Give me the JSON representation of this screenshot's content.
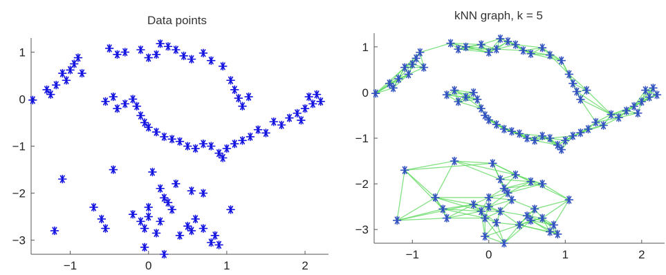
{
  "chart_data": [
    {
      "type": "scatter",
      "title": "Data points",
      "xlabel": "",
      "ylabel": "",
      "xlim": [
        -1.5,
        2.3
      ],
      "ylim": [
        -3.3,
        1.3
      ],
      "xticks": [
        -1,
        0,
        1,
        2
      ],
      "yticks": [
        1,
        0,
        -1,
        -2,
        -3
      ],
      "xtick_labels": [
        "−1",
        "0",
        "1",
        "2"
      ],
      "ytick_labels": [
        "1",
        "0",
        "−1",
        "−2",
        "−3"
      ],
      "grid": false,
      "marker": "asterisk",
      "marker_color": "#1010e0",
      "points": [
        [
          -1.48,
          -0.02
        ],
        [
          -1.3,
          0.2
        ],
        [
          -1.25,
          0.1
        ],
        [
          -1.18,
          0.3
        ],
        [
          -1.1,
          0.55
        ],
        [
          -1.05,
          0.4
        ],
        [
          -1.0,
          0.62
        ],
        [
          -0.95,
          0.75
        ],
        [
          -0.9,
          0.88
        ],
        [
          -0.85,
          0.55
        ],
        [
          -0.5,
          1.08
        ],
        [
          -0.4,
          0.95
        ],
        [
          -0.3,
          1.0
        ],
        [
          -0.1,
          1.05
        ],
        [
          0.0,
          0.88
        ],
        [
          0.1,
          0.95
        ],
        [
          0.15,
          1.18
        ],
        [
          0.25,
          1.12
        ],
        [
          0.35,
          1.05
        ],
        [
          0.45,
          0.92
        ],
        [
          0.55,
          0.85
        ],
        [
          0.7,
          0.98
        ],
        [
          0.8,
          0.82
        ],
        [
          0.95,
          0.7
        ],
        [
          1.05,
          0.4
        ],
        [
          1.1,
          0.2
        ],
        [
          1.15,
          0.02
        ],
        [
          1.2,
          -0.15
        ],
        [
          1.28,
          0.05
        ],
        [
          -0.55,
          -0.05
        ],
        [
          -0.45,
          0.05
        ],
        [
          -0.4,
          -0.2
        ],
        [
          -0.3,
          -0.1
        ],
        [
          -0.2,
          0.0
        ],
        [
          -0.15,
          -0.15
        ],
        [
          -0.1,
          -0.35
        ],
        [
          -0.05,
          -0.5
        ],
        [
          0.0,
          -0.6
        ],
        [
          0.1,
          -0.7
        ],
        [
          0.2,
          -0.8
        ],
        [
          0.3,
          -0.85
        ],
        [
          0.4,
          -0.9
        ],
        [
          0.5,
          -1.0
        ],
        [
          0.6,
          -1.05
        ],
        [
          0.7,
          -0.95
        ],
        [
          0.8,
          -1.0
        ],
        [
          0.9,
          -1.15
        ],
        [
          1.0,
          -1.05
        ],
        [
          1.1,
          -0.95
        ],
        [
          1.2,
          -0.88
        ],
        [
          1.3,
          -0.8
        ],
        [
          1.4,
          -0.65
        ],
        [
          1.5,
          -0.72
        ],
        [
          1.6,
          -0.48
        ],
        [
          1.7,
          -0.55
        ],
        [
          1.8,
          -0.4
        ],
        [
          1.9,
          -0.3
        ],
        [
          2.0,
          -0.2
        ],
        [
          2.05,
          0.05
        ],
        [
          2.1,
          -0.1
        ],
        [
          2.15,
          0.1
        ],
        [
          2.2,
          -0.05
        ],
        [
          1.95,
          -0.45
        ],
        [
          0.95,
          -1.25
        ],
        [
          -1.1,
          -1.7
        ],
        [
          -0.45,
          -1.5
        ],
        [
          -0.7,
          -2.3
        ],
        [
          -0.6,
          -2.55
        ],
        [
          -0.55,
          -2.75
        ],
        [
          -1.2,
          -2.8
        ],
        [
          -0.2,
          -2.45
        ],
        [
          -0.1,
          -2.6
        ],
        [
          -0.05,
          -2.75
        ],
        [
          0.0,
          -2.5
        ],
        [
          0.1,
          -2.85
        ],
        [
          0.15,
          -2.6
        ],
        [
          0.2,
          -2.1
        ],
        [
          0.25,
          -2.2
        ],
        [
          0.3,
          -2.35
        ],
        [
          0.4,
          -2.9
        ],
        [
          0.5,
          -2.7
        ],
        [
          0.55,
          -2.8
        ],
        [
          0.6,
          -2.55
        ],
        [
          0.7,
          -2.75
        ],
        [
          0.8,
          -3.05
        ],
        [
          0.85,
          -2.9
        ],
        [
          0.9,
          -3.1
        ],
        [
          1.05,
          -2.35
        ],
        [
          -0.05,
          -3.15
        ],
        [
          0.2,
          -3.3
        ],
        [
          0.05,
          -1.55
        ],
        [
          0.15,
          -1.9
        ],
        [
          0.35,
          -1.8
        ],
        [
          0.55,
          -1.95
        ],
        [
          0.7,
          -2.0
        ],
        [
          0.0,
          -2.3
        ]
      ]
    },
    {
      "type": "scatter",
      "title": "kNN graph, k = 5",
      "xlabel": "",
      "ylabel": "",
      "xlim": [
        -1.5,
        2.3
      ],
      "ylim": [
        -3.3,
        1.3
      ],
      "xticks": [
        -1,
        0,
        1,
        2
      ],
      "yticks": [
        1,
        0,
        -1,
        -2,
        -3
      ],
      "xtick_labels": [
        "−1",
        "0",
        "1",
        "2"
      ],
      "ytick_labels": [
        "1",
        "0",
        "−1",
        "−2",
        "−3"
      ],
      "grid": false,
      "k": 5,
      "marker": "asterisk",
      "marker_color": "#3050c0",
      "edge_color": "#5ad85a"
    }
  ]
}
